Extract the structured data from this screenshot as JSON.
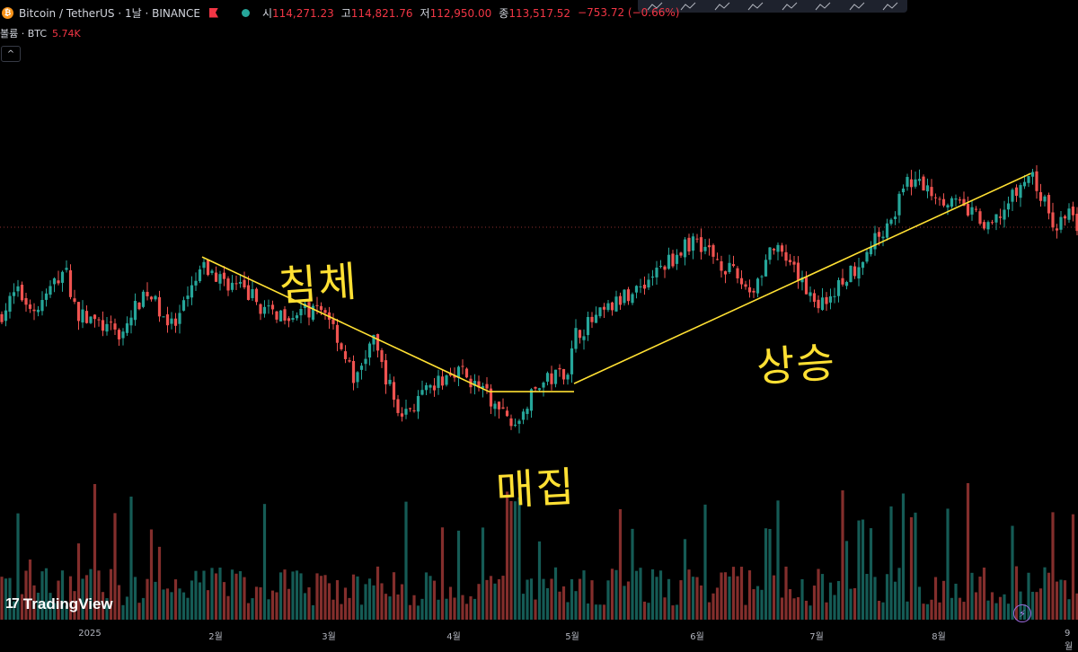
{
  "header": {
    "pair": "Bitcoin / TetherUS · 1날 · BINANCE",
    "open_label": "시",
    "open": "114,271.23",
    "high_label": "고",
    "high": "114,821.76",
    "low_label": "저",
    "low": "112,950.00",
    "close_label": "종",
    "close": "113,517.52",
    "change": "−753.72 (−0.66%)"
  },
  "volume": {
    "label": "볼륨 · BTC",
    "value": "5.74K"
  },
  "collapse_glyph": "^",
  "logo": {
    "mark": "17",
    "text": "TradingView"
  },
  "toolbar_icons": [
    "trend-line-icon",
    "horizontal-ray-icon",
    "pattern-icon",
    "zigzag-icon",
    "zigzag-alt-icon",
    "path-icon",
    "range-icon",
    "rectangle-icon"
  ],
  "annotations": {
    "decline": "침체",
    "accumulation": "매집",
    "rise": "상승"
  },
  "colors": {
    "up": "#26a69a",
    "down": "#ef5350",
    "annotation": "#ffe033"
  },
  "chart_data": {
    "type": "candlestick",
    "symbol": "BTCUSDT",
    "timeframe": "1D",
    "x_ticks": [
      "2025",
      "2월",
      "3월",
      "4월",
      "5월",
      "6월",
      "7월",
      "8월",
      "9월"
    ],
    "last_close": 113517.52,
    "price_path": [
      {
        "date": "2024-12-01",
        "close": 97000
      },
      {
        "date": "2024-12-05",
        "close": 101500
      },
      {
        "date": "2024-12-10",
        "close": 98000
      },
      {
        "date": "2024-12-17",
        "close": 106000
      },
      {
        "date": "2024-12-20",
        "close": 97500
      },
      {
        "date": "2024-12-31",
        "close": 93500
      },
      {
        "date": "2025-01-06",
        "close": 102000
      },
      {
        "date": "2025-01-13",
        "close": 94500
      },
      {
        "date": "2025-01-20",
        "close": 106000
      },
      {
        "date": "2025-01-22",
        "close": 105000
      },
      {
        "date": "2025-02-01",
        "close": 101000
      },
      {
        "date": "2025-02-05",
        "close": 97500
      },
      {
        "date": "2025-02-20",
        "close": 98000
      },
      {
        "date": "2025-02-27",
        "close": 84500
      },
      {
        "date": "2025-03-03",
        "close": 93000
      },
      {
        "date": "2025-03-10",
        "close": 78500
      },
      {
        "date": "2025-03-24",
        "close": 87500
      },
      {
        "date": "2025-03-31",
        "close": 82500
      },
      {
        "date": "2025-04-07",
        "close": 76500
      },
      {
        "date": "2025-04-13",
        "close": 84000
      },
      {
        "date": "2025-04-21",
        "close": 87500
      },
      {
        "date": "2025-04-22",
        "close": 93500
      },
      {
        "date": "2025-05-09",
        "close": 103000
      },
      {
        "date": "2025-05-22",
        "close": 111500
      },
      {
        "date": "2025-06-05",
        "close": 101500
      },
      {
        "date": "2025-06-10",
        "close": 110000
      },
      {
        "date": "2025-06-22",
        "close": 99000
      },
      {
        "date": "2025-07-01",
        "close": 106500
      },
      {
        "date": "2025-07-10",
        "close": 116000
      },
      {
        "date": "2025-07-14",
        "close": 122500
      },
      {
        "date": "2025-07-31",
        "close": 115500
      },
      {
        "date": "2025-08-02",
        "close": 112500
      },
      {
        "date": "2025-08-13",
        "close": 123500
      },
      {
        "date": "2025-08-19",
        "close": 113500
      },
      {
        "date": "2025-08-22",
        "close": 116500
      },
      {
        "date": "2025-08-25",
        "close": 113517.52
      }
    ],
    "trendlines": [
      {
        "from": {
          "date": "2025-01-20",
          "price": 108000
        },
        "to": {
          "date": "2025-04-01",
          "price": 83000
        }
      },
      {
        "from": {
          "date": "2025-04-01",
          "price": 83000
        },
        "to": {
          "date": "2025-04-22",
          "price": 83000
        }
      },
      {
        "from": {
          "date": "2025-04-22",
          "price": 84500
        },
        "to": {
          "date": "2025-08-13",
          "price": 123500
        }
      }
    ]
  }
}
